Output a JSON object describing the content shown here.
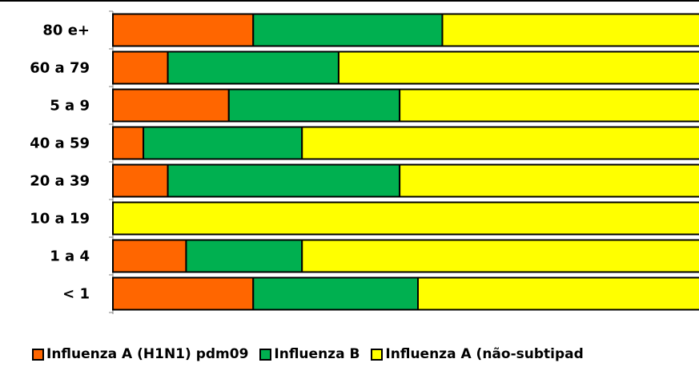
{
  "chart_data": {
    "type": "bar",
    "orientation": "horizontal",
    "stacked": true,
    "normalized": true,
    "categories": [
      "80 e+",
      "60 a 79",
      "5 a 9",
      "40 a 59",
      "20 a 39",
      "10 a 19",
      "1 a 4",
      "< 1"
    ],
    "series": [
      {
        "name": "Influenza A (H1N1) pdm09",
        "color": "#ff6600",
        "values": [
          23,
          9,
          19,
          5,
          9,
          0,
          12,
          23
        ]
      },
      {
        "name": "Influenza B",
        "color": "#00b050",
        "values": [
          31,
          28,
          28,
          26,
          38,
          0,
          19,
          27
        ]
      },
      {
        "name": "Influenza A (não-subtipad",
        "color": "#ffff00",
        "values": [
          46,
          63,
          53,
          69,
          53,
          100,
          69,
          50
        ]
      }
    ],
    "xlim": [
      0,
      100
    ],
    "legend_position": "bottom"
  }
}
